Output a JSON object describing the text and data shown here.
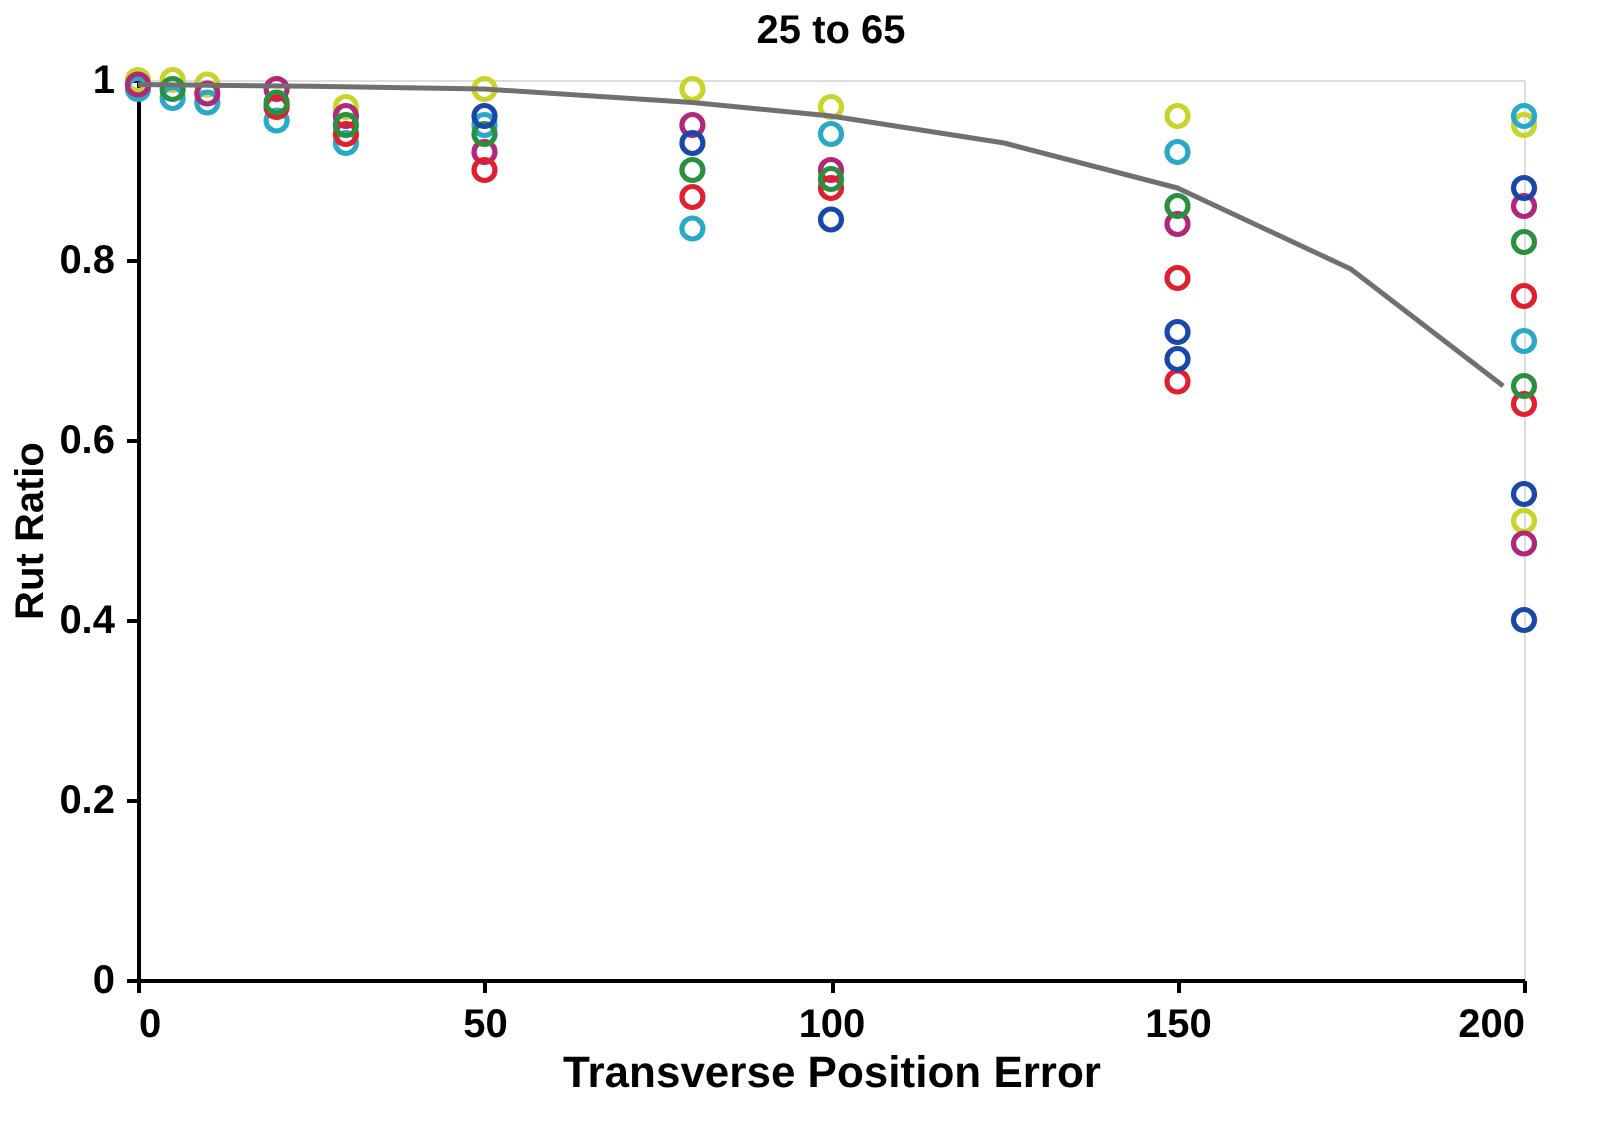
{
  "chart_data": {
    "type": "scatter",
    "title": "25 to 65",
    "xlabel": "Transverse Position Error",
    "ylabel": "Rut Ratio",
    "xlim": [
      0,
      200
    ],
    "ylim": [
      0,
      1
    ],
    "xticks": [
      0,
      50,
      100,
      150,
      200
    ],
    "yticks": [
      0,
      0.2,
      0.4,
      0.6,
      0.8,
      1
    ],
    "grid": false,
    "marker": "circle",
    "series": [
      {
        "color": "#c8d42a",
        "x": [
          0,
          5,
          10,
          20,
          30,
          50,
          80,
          100,
          150,
          200,
          200
        ],
        "values": [
          1.0,
          1.0,
          0.995,
          null,
          0.97,
          0.99,
          0.99,
          0.97,
          0.96,
          0.51,
          0.95
        ]
      },
      {
        "color": "#2aa8c8",
        "x": [
          0,
          5,
          10,
          20,
          30,
          50,
          80,
          100,
          150,
          200,
          200
        ],
        "values": [
          0.99,
          0.98,
          0.975,
          0.955,
          0.93,
          0.95,
          0.835,
          0.94,
          0.92,
          0.96,
          0.71
        ]
      },
      {
        "color": "#b0287a",
        "x": [
          0,
          10,
          20,
          30,
          50,
          80,
          100,
          150,
          200,
          200
        ],
        "values": [
          0.995,
          0.985,
          0.99,
          0.96,
          0.92,
          0.95,
          0.9,
          0.84,
          0.485,
          0.86
        ]
      },
      {
        "color": "#e02030",
        "x": [
          20,
          30,
          50,
          80,
          100,
          150,
          150,
          200,
          200
        ],
        "values": [
          0.97,
          0.94,
          0.9,
          0.87,
          0.88,
          0.78,
          0.665,
          0.76,
          0.64
        ]
      },
      {
        "color": "#2a9040",
        "x": [
          5,
          20,
          30,
          50,
          80,
          100,
          150,
          200,
          200
        ],
        "values": [
          0.99,
          0.975,
          0.95,
          0.94,
          0.9,
          0.89,
          0.86,
          0.82,
          0.66
        ]
      },
      {
        "color": "#1a48a8",
        "x": [
          50,
          80,
          100,
          150,
          150,
          200,
          200,
          200
        ],
        "values": [
          0.96,
          0.93,
          0.845,
          0.72,
          0.69,
          0.88,
          0.54,
          0.4
        ]
      },
      {
        "type": "line",
        "color": "#707070",
        "marker": "none",
        "x": [
          0,
          25,
          50,
          80,
          100,
          125,
          150,
          175,
          197
        ],
        "values": [
          0.995,
          0.993,
          0.99,
          0.975,
          0.96,
          0.93,
          0.88,
          0.79,
          0.66
        ]
      }
    ]
  }
}
